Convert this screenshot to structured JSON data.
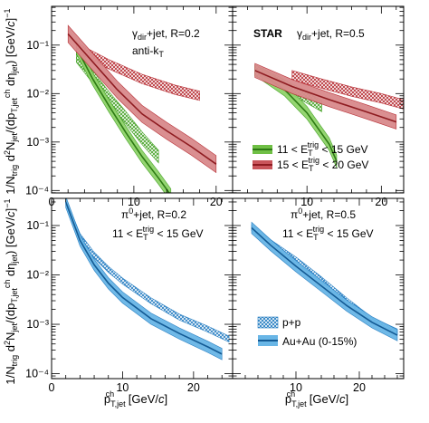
{
  "colors": {
    "green": "#3f9f1f",
    "green_light": "#8fd36a",
    "red": "#b5252c",
    "red_light": "#d98a8c",
    "blue": "#1f7ac0",
    "blue_light": "#69b6e6"
  },
  "figure": {
    "ylabel_top": "1/N_trig d²N_jet/(dp_T,jet^ch dη_jet) [GeV/c]⁻¹",
    "ylabel_bottom": "1/N_trig d²N_jet/(dp_T,jet^ch dη_jet) [GeV/c]⁻¹",
    "xlabel_left": "p_T,jet^ch [GeV/c]",
    "xlabel_right": "p_T,jet^ch [GeV/c]"
  },
  "chart_data": [
    {
      "type": "area",
      "panel": "top-left",
      "annotations": [
        "γ_dir+jet, R=0.2",
        "anti-k_T"
      ],
      "xlim": [
        0,
        22
      ],
      "ylim_log10": [
        -4.05,
        -0.2
      ],
      "x_ticks": [
        0,
        10,
        20
      ],
      "x_tick_labels": [
        "0",
        "10",
        "20"
      ],
      "y_tick_labels": [
        "10⁻¹",
        "10⁻²",
        "10⁻³",
        "10⁻⁴"
      ],
      "y_tick_values": [
        0.1,
        0.01,
        0.001,
        0.0001
      ],
      "series": [
        {
          "name": "11 < E_T^trig < 15 GeV",
          "system": "p+p",
          "x": [
            3,
            5,
            7,
            9,
            11,
            13
          ],
          "y": [
            0.06,
            0.022,
            0.008,
            0.0032,
            0.0012,
            0.0005
          ],
          "rel_err": 0.35
        },
        {
          "name": "11 < E_T^trig < 15 GeV",
          "system": "Au+Au (0-15%)",
          "x": [
            3,
            5,
            7,
            9,
            11,
            13,
            14.5
          ],
          "y": [
            0.09,
            0.02,
            0.0055,
            0.0016,
            0.0005,
            0.00018,
            8e-05
          ],
          "rel_err": 0.35
        },
        {
          "name": "15 < E_T^trig < 20 GeV",
          "system": "p+p",
          "x": [
            3,
            7,
            11,
            15,
            18
          ],
          "y": [
            0.09,
            0.04,
            0.02,
            0.012,
            0.009
          ],
          "rel_err": 0.25
        },
        {
          "name": "15 < E_T^trig < 20 GeV",
          "system": "Au+Au (0-15%)",
          "x": [
            2,
            5,
            8,
            11,
            14,
            17,
            20
          ],
          "y": [
            0.17,
            0.045,
            0.012,
            0.0038,
            0.0017,
            0.0008,
            0.00035
          ],
          "rel_err": 0.5
        }
      ]
    },
    {
      "type": "area",
      "panel": "top-right",
      "annotations": [
        "STAR",
        "γ_dir+jet, R=0.5"
      ],
      "xlim": [
        0,
        23
      ],
      "ylim_log10": [
        -4.05,
        -0.2
      ],
      "x_ticks": [
        10,
        20
      ],
      "x_tick_labels": [
        "10",
        "20"
      ],
      "series": [
        {
          "name": "11 < E_T^trig < 15 GeV",
          "system": "p+p",
          "x": [
            3,
            6,
            9,
            12
          ],
          "y": [
            0.03,
            0.018,
            0.01,
            0.0055
          ],
          "rel_err": 0.3
        },
        {
          "name": "11 < E_T^trig < 15 GeV",
          "system": "Au+Au (0-15%)",
          "x": [
            4,
            7,
            10,
            13,
            14
          ],
          "y": [
            0.025,
            0.012,
            0.004,
            0.0009,
            0.0004
          ],
          "rel_err": 0.35
        },
        {
          "name": "15 < E_T^trig < 20 GeV",
          "system": "p+p",
          "x": [
            8,
            12,
            16,
            20,
            23
          ],
          "y": [
            0.024,
            0.016,
            0.011,
            0.008,
            0.006
          ],
          "rel_err": 0.25
        },
        {
          "name": "15 < E_T^trig < 20 GeV",
          "system": "Au+Au (0-15%)",
          "x": [
            3,
            8,
            13,
            18,
            22
          ],
          "y": [
            0.03,
            0.014,
            0.0075,
            0.0042,
            0.0026
          ],
          "rel_err": 0.4
        }
      ],
      "legend": {
        "position": "bottom-left",
        "entries": [
          "11 < E_T^trig < 15 GeV",
          "15 < E_T^trig < 20 GeV"
        ]
      }
    },
    {
      "type": "area",
      "panel": "bottom-left",
      "annotations": [
        "π⁰+jet, R=0.2",
        "11 < E_T^trig < 15 GeV"
      ],
      "xlim": [
        0,
        25.5
      ],
      "ylim_log10": [
        -4.1,
        -0.45
      ],
      "x_ticks": [
        0,
        10,
        20
      ],
      "x_tick_labels": [
        "0",
        "10",
        "20"
      ],
      "y_tick_labels": [
        "10⁻¹",
        "10⁻²",
        "10⁻³",
        "10⁻⁴"
      ],
      "y_tick_values": [
        0.1,
        0.01,
        0.001,
        0.0001
      ],
      "series": [
        {
          "name": "p+p",
          "system": "p+p",
          "x": [
            2,
            4,
            6,
            8,
            10,
            14,
            18,
            22,
            25
          ],
          "y": [
            0.3,
            0.06,
            0.025,
            0.013,
            0.0075,
            0.003,
            0.0014,
            0.0008,
            0.0005
          ],
          "rel_err": 0.15
        },
        {
          "name": "Au+Au (0-15%)",
          "system": "Au+Au (0-15%)",
          "x": [
            2,
            4,
            6,
            8,
            10,
            14,
            18,
            22,
            24
          ],
          "y": [
            0.3,
            0.05,
            0.016,
            0.0068,
            0.0035,
            0.0013,
            0.00065,
            0.00035,
            0.00025
          ],
          "rel_err": 0.3
        }
      ]
    },
    {
      "type": "area",
      "panel": "bottom-right",
      "annotations": [
        "π⁰+jet, R=0.5",
        "11 < E_T^trig < 15 GeV"
      ],
      "xlim": [
        0,
        27
      ],
      "ylim_log10": [
        -4.1,
        -0.45
      ],
      "x_ticks": [
        10,
        20
      ],
      "x_tick_labels": [
        "10",
        "20"
      ],
      "series": [
        {
          "name": "p+p",
          "system": "p+p",
          "x": [
            3,
            6,
            10,
            14,
            18,
            22,
            26
          ],
          "y": [
            0.09,
            0.045,
            0.02,
            0.008,
            0.003,
            0.0012,
            0.0007
          ],
          "rel_err": 0.15
        },
        {
          "name": "Au+Au (0-15%)",
          "system": "Au+Au (0-15%)",
          "x": [
            3,
            6,
            10,
            14,
            18,
            22,
            26
          ],
          "y": [
            0.09,
            0.04,
            0.015,
            0.006,
            0.0024,
            0.0011,
            0.0006
          ],
          "rel_err": 0.3
        }
      ],
      "legend": {
        "position": "bottom-left",
        "entries": [
          "p+p",
          "Au+Au (0-15%)"
        ]
      }
    }
  ]
}
